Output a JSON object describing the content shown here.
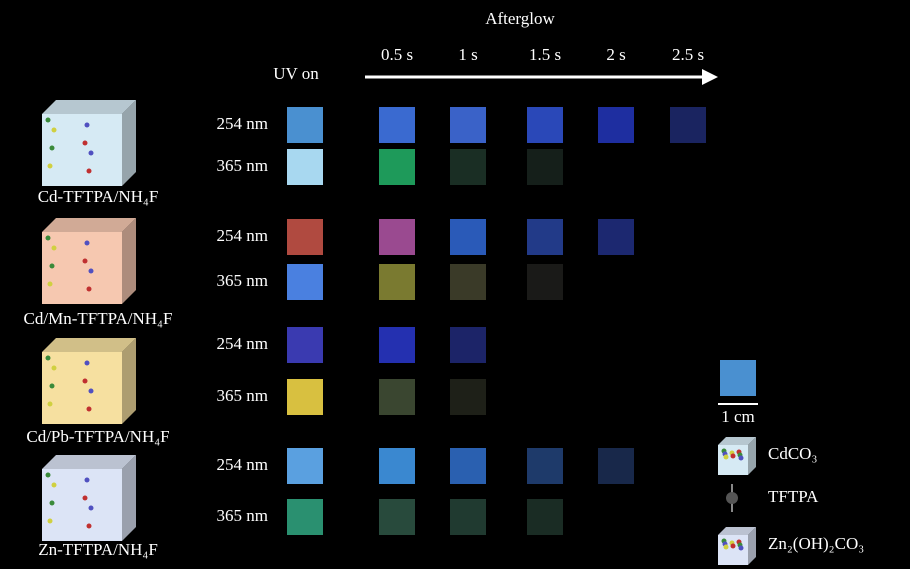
{
  "header": {
    "title": "Afterglow",
    "uv_label": "UV on",
    "times": [
      "0.5 s",
      "1 s",
      "1.5 s",
      "2 s",
      "2.5 s"
    ]
  },
  "samples": [
    {
      "name": "Cd-TFTPA/NH₄F",
      "cube_color": "#d6eaf4",
      "rows": [
        {
          "wavelength": "254 nm",
          "colors": [
            "#4a90d0",
            "#3a6ad0",
            "#3a62c8",
            "#2a48b8",
            "#1e2ea0",
            "#1a2460"
          ]
        },
        {
          "wavelength": "365 nm",
          "colors": [
            "#a8d8f0",
            "#1e9a5a",
            "#1a2e24",
            "#151f1a"
          ]
        }
      ]
    },
    {
      "name": "Cd/Mn-TFTPA/NH₄F",
      "cube_color": "#f6c8b0",
      "rows": [
        {
          "wavelength": "254 nm",
          "colors": [
            "#b04a40",
            "#9a4a90",
            "#2a5ab8",
            "#223a88",
            "#1c2870"
          ]
        },
        {
          "wavelength": "365 nm",
          "colors": [
            "#4a80e0",
            "#7a7a30",
            "#3a3a28",
            "#1a1a18"
          ]
        }
      ]
    },
    {
      "name": "Cd/Pb-TFTPA/NH₄F",
      "cube_color": "#f6e0a0",
      "rows": [
        {
          "wavelength": "254 nm",
          "colors": [
            "#3a3ab0",
            "#2430b0",
            "#1c2468"
          ]
        },
        {
          "wavelength": "365 nm",
          "colors": [
            "#d8c040",
            "#3a4630",
            "#1e2018"
          ]
        }
      ]
    },
    {
      "name": "Zn-TFTPA/NH₄F",
      "cube_color": "#dce4f6",
      "rows": [
        {
          "wavelength": "254 nm",
          "colors": [
            "#5aa0e0",
            "#3a88d0",
            "#2a60b0",
            "#1e3a6a",
            "#18284a"
          ]
        },
        {
          "wavelength": "365 nm",
          "colors": [
            "#2a9070",
            "#284a3c",
            "#203a30",
            "#1a2c24"
          ]
        }
      ]
    }
  ],
  "legend": {
    "scale": "1 cm",
    "items": [
      "CdCO₃",
      "TFTPA",
      "Zn₂(OH)₂CO₃"
    ]
  }
}
